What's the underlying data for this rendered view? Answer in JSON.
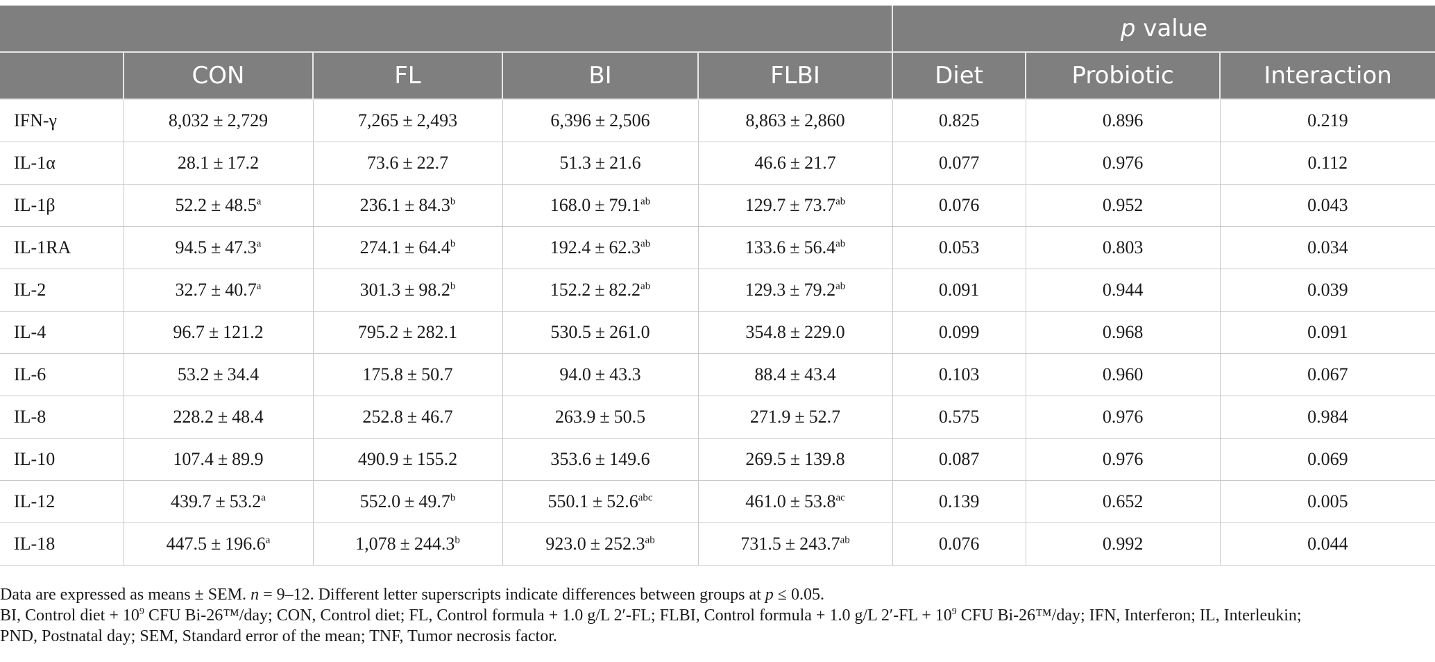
{
  "header": {
    "p_value_label_italic": "p",
    "p_value_label_rest": " value",
    "columns": [
      "CON",
      "FL",
      "BI",
      "FLBI",
      "Diet",
      "Probiotic",
      "Interaction"
    ]
  },
  "pm_symbol": "±",
  "rows": [
    {
      "label": "IFN-γ",
      "groups": [
        {
          "mean": "8,032",
          "sem": "2,729",
          "sup": ""
        },
        {
          "mean": "7,265",
          "sem": "2,493",
          "sup": ""
        },
        {
          "mean": "6,396",
          "sem": "2,506",
          "sup": ""
        },
        {
          "mean": "8,863",
          "sem": "2,860",
          "sup": ""
        }
      ],
      "p": [
        "0.825",
        "0.896",
        "0.219"
      ]
    },
    {
      "label": "IL-1α",
      "groups": [
        {
          "mean": "28.1",
          "sem": "17.2",
          "sup": ""
        },
        {
          "mean": "73.6",
          "sem": "22.7",
          "sup": ""
        },
        {
          "mean": "51.3",
          "sem": "21.6",
          "sup": ""
        },
        {
          "mean": "46.6",
          "sem": "21.7",
          "sup": ""
        }
      ],
      "p": [
        "0.077",
        "0.976",
        "0.112"
      ]
    },
    {
      "label": "IL-1β",
      "groups": [
        {
          "mean": "52.2",
          "sem": "48.5",
          "sup": "a"
        },
        {
          "mean": "236.1",
          "sem": "84.3",
          "sup": "b"
        },
        {
          "mean": "168.0",
          "sem": "79.1",
          "sup": "ab"
        },
        {
          "mean": "129.7",
          "sem": "73.7",
          "sup": "ab"
        }
      ],
      "p": [
        "0.076",
        "0.952",
        "0.043"
      ]
    },
    {
      "label": "IL-1RA",
      "groups": [
        {
          "mean": "94.5",
          "sem": "47.3",
          "sup": "a"
        },
        {
          "mean": "274.1",
          "sem": "64.4",
          "sup": "b"
        },
        {
          "mean": "192.4",
          "sem": "62.3",
          "sup": "ab"
        },
        {
          "mean": "133.6",
          "sem": "56.4",
          "sup": "ab"
        }
      ],
      "p": [
        "0.053",
        "0.803",
        "0.034"
      ]
    },
    {
      "label": "IL-2",
      "groups": [
        {
          "mean": "32.7",
          "sem": "40.7",
          "sup": "a"
        },
        {
          "mean": "301.3",
          "sem": "98.2",
          "sup": "b"
        },
        {
          "mean": "152.2",
          "sem": "82.2",
          "sup": "ab"
        },
        {
          "mean": "129.3",
          "sem": "79.2",
          "sup": "ab"
        }
      ],
      "p": [
        "0.091",
        "0.944",
        "0.039"
      ]
    },
    {
      "label": "IL-4",
      "groups": [
        {
          "mean": "96.7",
          "sem": "121.2",
          "sup": ""
        },
        {
          "mean": "795.2",
          "sem": "282.1",
          "sup": ""
        },
        {
          "mean": "530.5",
          "sem": "261.0",
          "sup": ""
        },
        {
          "mean": "354.8",
          "sem": "229.0",
          "sup": ""
        }
      ],
      "p": [
        "0.099",
        "0.968",
        "0.091"
      ]
    },
    {
      "label": "IL-6",
      "groups": [
        {
          "mean": "53.2",
          "sem": "34.4",
          "sup": ""
        },
        {
          "mean": "175.8",
          "sem": "50.7",
          "sup": ""
        },
        {
          "mean": "94.0",
          "sem": "43.3",
          "sup": ""
        },
        {
          "mean": "88.4",
          "sem": "43.4",
          "sup": ""
        }
      ],
      "p": [
        "0.103",
        "0.960",
        "0.067"
      ]
    },
    {
      "label": "IL-8",
      "groups": [
        {
          "mean": "228.2",
          "sem": "48.4",
          "sup": ""
        },
        {
          "mean": "252.8",
          "sem": "46.7",
          "sup": ""
        },
        {
          "mean": "263.9",
          "sem": "50.5",
          "sup": ""
        },
        {
          "mean": "271.9",
          "sem": "52.7",
          "sup": ""
        }
      ],
      "p": [
        "0.575",
        "0.976",
        "0.984"
      ]
    },
    {
      "label": "IL-10",
      "groups": [
        {
          "mean": "107.4",
          "sem": "89.9",
          "sup": ""
        },
        {
          "mean": "490.9",
          "sem": "155.2",
          "sup": ""
        },
        {
          "mean": "353.6",
          "sem": "149.6",
          "sup": ""
        },
        {
          "mean": "269.5",
          "sem": "139.8",
          "sup": ""
        }
      ],
      "p": [
        "0.087",
        "0.976",
        "0.069"
      ]
    },
    {
      "label": "IL-12",
      "groups": [
        {
          "mean": "439.7",
          "sem": "53.2",
          "sup": "a"
        },
        {
          "mean": "552.0",
          "sem": "49.7",
          "sup": "b"
        },
        {
          "mean": "550.1",
          "sem": "52.6",
          "sup": "abc"
        },
        {
          "mean": "461.0",
          "sem": "53.8",
          "sup": "ac"
        }
      ],
      "p": [
        "0.139",
        "0.652",
        "0.005"
      ]
    },
    {
      "label": "IL-18",
      "groups": [
        {
          "mean": "447.5",
          "sem": "196.6",
          "sup": "a"
        },
        {
          "mean": "1,078",
          "sem": "244.3",
          "sup": "b"
        },
        {
          "mean": "923.0",
          "sem": "252.3",
          "sup": "ab"
        },
        {
          "mean": "731.5",
          "sem": "243.7",
          "sup": "ab"
        }
      ],
      "p": [
        "0.076",
        "0.992",
        "0.044"
      ]
    }
  ],
  "footer": {
    "line1_a": "Data are expressed as means ± SEM. ",
    "line1_n": "n",
    "line1_b": " = 9–12. Different letter superscripts indicate differences between groups at ",
    "line1_p": "p",
    "line1_c": " ≤ 0.05.",
    "line2_a": "BI, Control diet + 10",
    "line2_sup1": "9",
    "line2_b": " CFU Bi-26™/day; CON, Control diet; FL, Control formula + 1.0 g/L 2′-FL; FLBI, Control formula + 1.0 g/L 2′-FL + 10",
    "line2_sup2": "9",
    "line2_c": " CFU Bi-26™/day; IFN, Interferon; IL, Interleukin;",
    "line3": "PND, Postnatal day; SEM, Standard error of the mean; TNF, Tumor necrosis factor."
  }
}
